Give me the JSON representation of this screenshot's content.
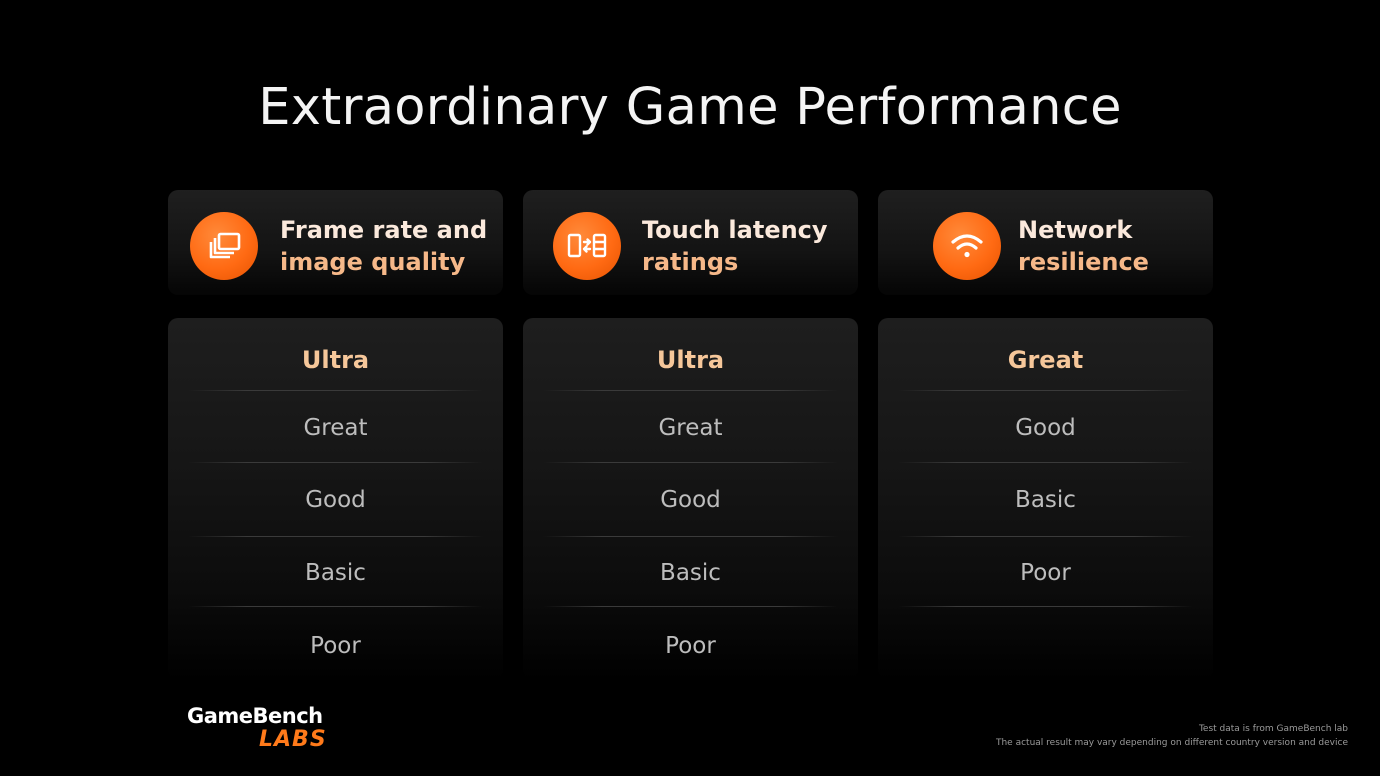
{
  "title": "Extraordinary Game Performance",
  "accent_color": "#ff6a13",
  "columns": [
    {
      "icon": "layers-icon",
      "header_line1": "Frame rate and",
      "header_line2": "image quality",
      "ratings": [
        "Ultra",
        "Great",
        "Good",
        "Basic",
        "Poor"
      ]
    },
    {
      "icon": "touch-latency-icon",
      "header_line1": "Touch latency",
      "header_line2": "ratings",
      "ratings": [
        "Ultra",
        "Great",
        "Good",
        "Basic",
        "Poor"
      ]
    },
    {
      "icon": "wifi-icon",
      "header_line1": "Network",
      "header_line2": "resilience",
      "ratings": [
        "Great",
        "Good",
        "Basic",
        "Poor"
      ]
    }
  ],
  "logo": {
    "top": "GameBench",
    "bottom": "LABS"
  },
  "footnotes": [
    "Test data is from GameBench lab",
    "The actual result may vary depending on different country version and device"
  ]
}
